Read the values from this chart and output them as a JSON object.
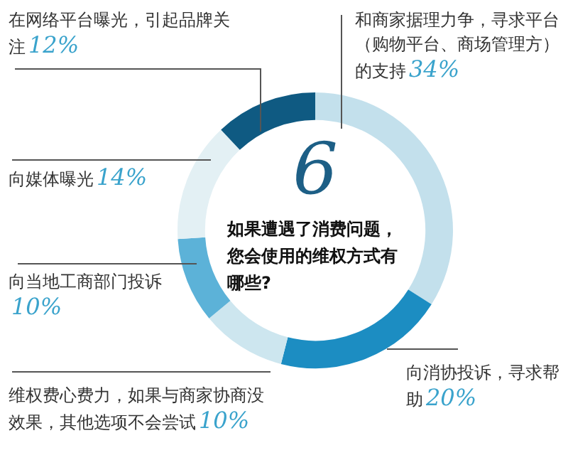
{
  "chart_data": {
    "type": "donut",
    "title": "如果遭遇了消费问题，您会使用的维权方式有哪些?",
    "annotations": [
      "6"
    ],
    "categories": [
      "和商家据理力争，寻求平台（购物平台、商场管理方）的支持",
      "向消协投诉，寻求帮助",
      "维权费心费力，如果与商家协商没效果，其他选项不会尝试",
      "向当地工商部门投诉",
      "向媒体曝光",
      "在网络平台曝光，引起品牌关注"
    ],
    "values": [
      34,
      20,
      10,
      10,
      14,
      12
    ],
    "value_labels": [
      "34%",
      "20%",
      "10%",
      "10%",
      "14%",
      "12%"
    ],
    "colors": [
      "#c3e0ec",
      "#1c8dc2",
      "#cde6ef",
      "#5cb2d8",
      "#e3f0f4",
      "#0f5a82"
    ]
  }
}
